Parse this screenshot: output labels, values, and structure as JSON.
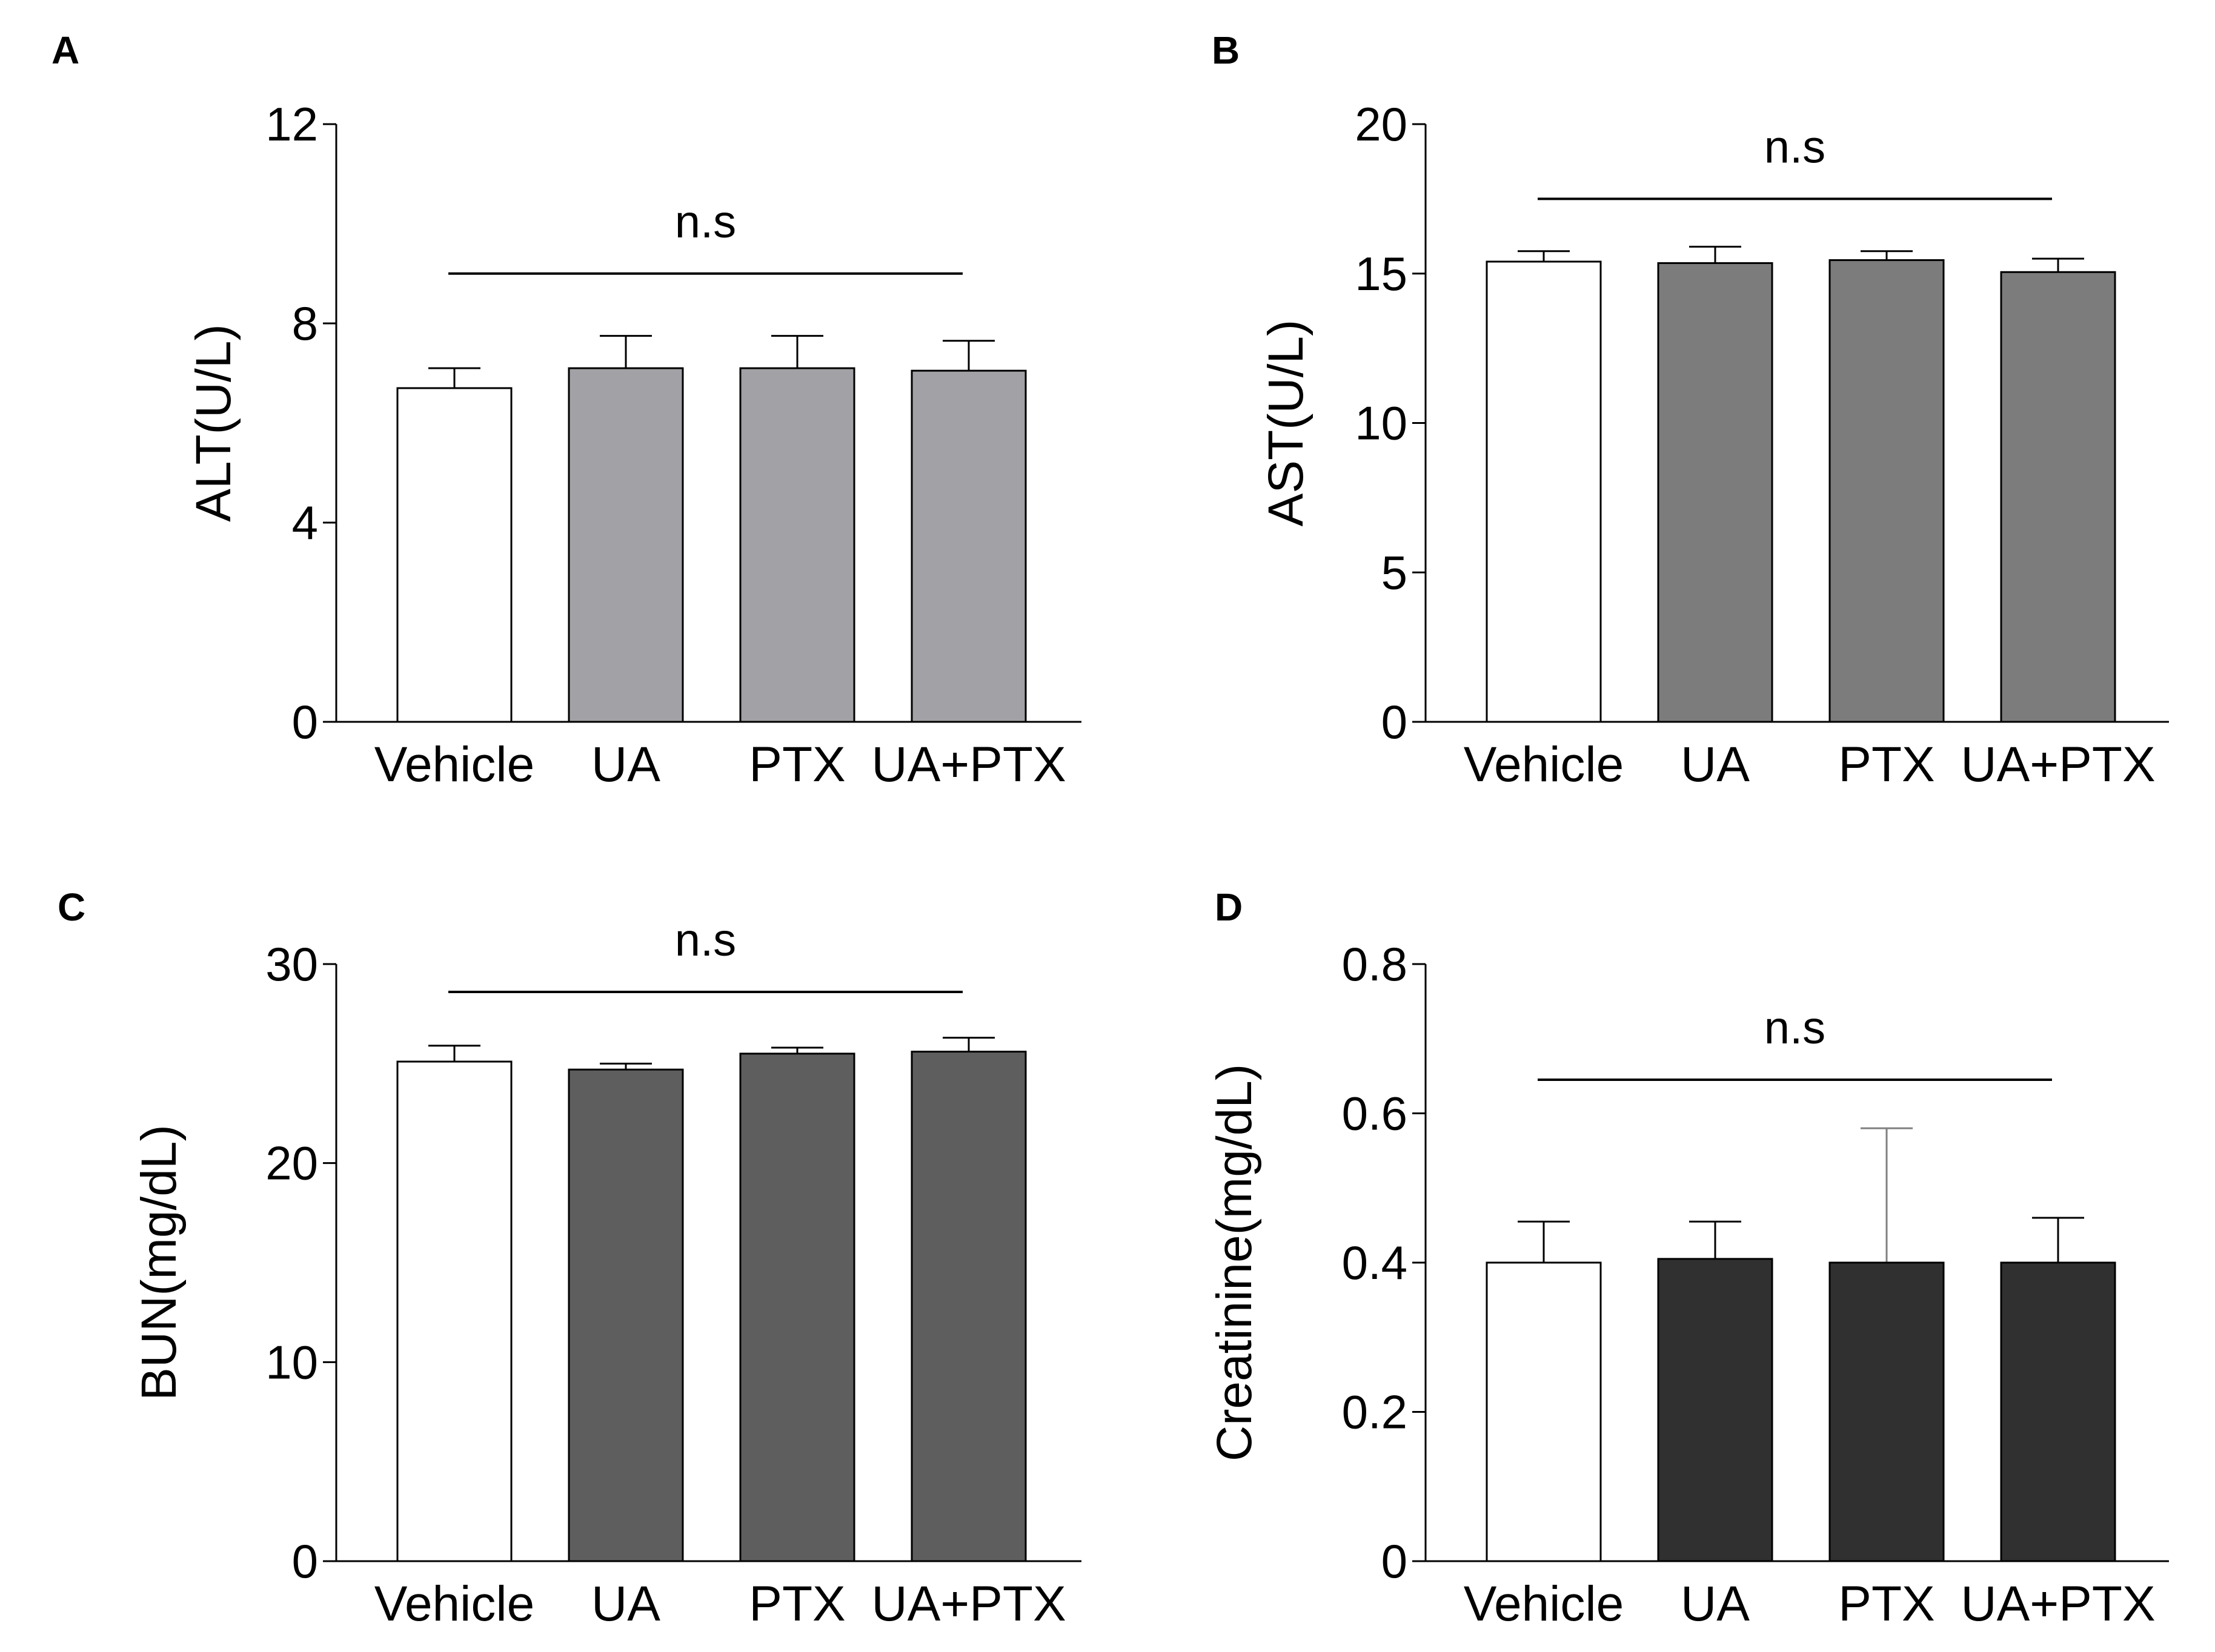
{
  "figure": {
    "background": "#ffffff",
    "panels": [
      {
        "letter": "A",
        "chart_data": {
          "type": "bar",
          "categories": [
            "Vehicle",
            "UA",
            "PTX",
            "UA+PTX"
          ],
          "values": [
            6.7,
            7.1,
            7.1,
            7.05
          ],
          "errors": [
            0.4,
            0.65,
            0.65,
            0.6
          ],
          "bar_colors": [
            "#ffffff",
            "#a2a2a6",
            "#a2a2a6",
            "#a2a2a6"
          ],
          "error_bar_colors": [
            "#000000",
            "#000000",
            "#000000",
            "#000000"
          ],
          "ylabel": "ALT(U/L)",
          "ylim": [
            0,
            12
          ],
          "yticks": [
            0,
            4,
            8,
            12
          ],
          "annotation": {
            "text": "n.s",
            "from_category": 0,
            "to_category": 3,
            "y": 9
          }
        }
      },
      {
        "letter": "B",
        "chart_data": {
          "type": "bar",
          "categories": [
            "Vehicle",
            "UA",
            "PTX",
            "UA+PTX"
          ],
          "values": [
            15.4,
            15.35,
            15.45,
            15.05
          ],
          "errors": [
            0.35,
            0.55,
            0.3,
            0.45
          ],
          "bar_colors": [
            "#ffffff",
            "#7c7c7c",
            "#7c7c7c",
            "#7c7c7c"
          ],
          "error_bar_colors": [
            "#000000",
            "#000000",
            "#000000",
            "#000000"
          ],
          "ylabel": "AST(U/L)",
          "ylim": [
            0,
            20
          ],
          "yticks": [
            0,
            5,
            10,
            15,
            20
          ],
          "annotation": {
            "text": "n.s",
            "from_category": 0,
            "to_category": 3,
            "y": 17.5
          }
        }
      },
      {
        "letter": "C",
        "chart_data": {
          "type": "bar",
          "categories": [
            "Vehicle",
            "UA",
            "PTX",
            "UA+PTX"
          ],
          "values": [
            25.1,
            24.7,
            25.5,
            25.6
          ],
          "errors": [
            0.8,
            0.3,
            0.3,
            0.7
          ],
          "bar_colors": [
            "#ffffff",
            "#5e5e5e",
            "#5e5e5e",
            "#5e5e5e"
          ],
          "error_bar_colors": [
            "#000000",
            "#000000",
            "#000000",
            "#000000"
          ],
          "ylabel": "BUN(mg/dL)",
          "ylim": [
            0,
            30
          ],
          "yticks": [
            0,
            10,
            20,
            30
          ],
          "annotation": {
            "text": "n.s",
            "from_category": 0,
            "to_category": 3,
            "y": 28.6
          }
        }
      },
      {
        "letter": "D",
        "chart_data": {
          "type": "bar",
          "categories": [
            "Vehicle",
            "UA",
            "PTX",
            "UA+PTX"
          ],
          "values": [
            0.4,
            0.405,
            0.4,
            0.4
          ],
          "errors": [
            0.055,
            0.05,
            0.18,
            0.06
          ],
          "bar_colors": [
            "#ffffff",
            "#303030",
            "#303030",
            "#303030"
          ],
          "error_bar_colors": [
            "#000000",
            "#000000",
            "#808080",
            "#000000"
          ],
          "ylabel": "Creatinine(mg/dL)",
          "ylim": [
            0,
            0.8
          ],
          "yticks": [
            0,
            0.2,
            0.4,
            0.6,
            0.8
          ],
          "annotation": {
            "text": "n.s",
            "from_category": 0,
            "to_category": 3,
            "y": 0.645
          }
        }
      }
    ]
  }
}
